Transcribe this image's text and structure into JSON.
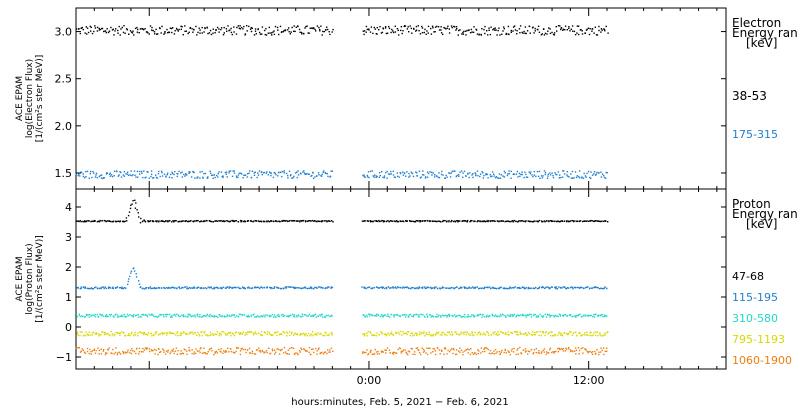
{
  "chart_data": [
    {
      "type": "scatter",
      "panel": "electron",
      "ylabel_lines": [
        "ACE EPAM",
        "log(Electron Flux)",
        "[1/(cm²s ster MeV)]"
      ],
      "ylim": [
        1.33,
        3.25
      ],
      "yticks": [
        1.5,
        2.0,
        2.5,
        3.0
      ],
      "ytick_labels": [
        "1.5",
        "2.0",
        "2.5",
        "3.0"
      ],
      "legend_title_lines": [
        "Electron",
        "Energy ran",
        "[keV]"
      ],
      "series": [
        {
          "name": "38-53",
          "color": "#000000",
          "baseline": 3.02,
          "noise": 0.05
        },
        {
          "name": "175-315",
          "color": "#1f7fd0",
          "baseline": 1.49,
          "noise": 0.04
        }
      ]
    },
    {
      "type": "scatter",
      "panel": "proton",
      "ylabel_lines": [
        "ACE EPAM",
        "log(Proton Flux)",
        "[1/(cm²s ster MeV)]"
      ],
      "ylim": [
        -1.4,
        4.6
      ],
      "yticks": [
        -1,
        0,
        1,
        2,
        3,
        4
      ],
      "ytick_labels": [
        "−1",
        "0",
        "1",
        "2",
        "3",
        "4"
      ],
      "legend_title_lines": [
        "Proton",
        "Energy ran",
        "[keV]"
      ],
      "series": [
        {
          "name": "47-68",
          "color": "#000000",
          "baseline": 3.55,
          "noise": 0.02,
          "spike_peak": 4.3
        },
        {
          "name": "115-195",
          "color": "#1f7fd0",
          "baseline": 1.33,
          "noise": 0.03,
          "spike_peak": 2.0
        },
        {
          "name": "310-580",
          "color": "#22d8c8",
          "baseline": 0.4,
          "noise": 0.05
        },
        {
          "name": "795-1193",
          "color": "#d8d800",
          "baseline": -0.2,
          "noise": 0.07
        },
        {
          "name": "1060-1900",
          "color": "#ee7f10",
          "baseline": -0.78,
          "noise": 0.12
        }
      ]
    }
  ],
  "time_axis": {
    "range_hours": [
      -16.0,
      19.5
    ],
    "data_gap_hours": [
      -2.0,
      -0.4
    ],
    "data_end_hours": 13.0,
    "tick_labels": [
      "0:00",
      "12:00"
    ],
    "tick_hours": [
      0,
      12
    ],
    "xlabel": "hours:minutes, Feb.  5, 2021 − Feb.  6, 2021"
  }
}
